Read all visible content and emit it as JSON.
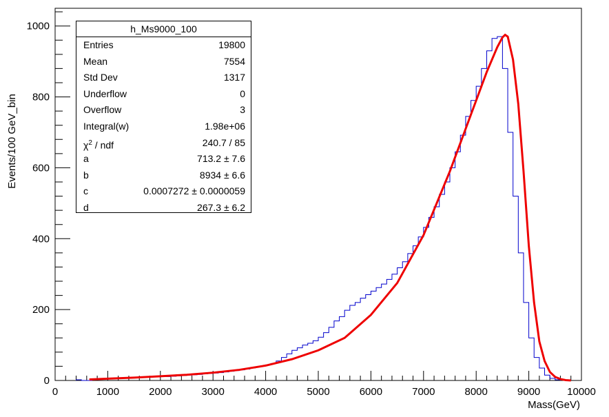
{
  "chart_data": {
    "type": "histogram",
    "ylabel": "Events/100 GeV_bin",
    "xlabel": "Mass(GeV)",
    "xlim": [
      0,
      10000
    ],
    "ylim": [
      0,
      1050
    ],
    "x_ticks": [
      "0",
      "1000",
      "2000",
      "3000",
      "4000",
      "5000",
      "6000",
      "7000",
      "8000",
      "9000",
      "10000"
    ],
    "y_ticks": [
      "0",
      "200",
      "400",
      "600",
      "800",
      "1000"
    ],
    "grid": false,
    "series": [
      {
        "kind": "histogram",
        "color": "#0000cc",
        "bin_width": 100,
        "bin_start": 400,
        "values": [
          2,
          0,
          0,
          3,
          3,
          4,
          5,
          6,
          6,
          7,
          7,
          8,
          8,
          9,
          10,
          10,
          11,
          11,
          12,
          13,
          14,
          15,
          16,
          17,
          19,
          20,
          21,
          22,
          24,
          26,
          28,
          30,
          32,
          35,
          38,
          41,
          44,
          48,
          55,
          65,
          75,
          85,
          92,
          100,
          105,
          112,
          122,
          135,
          150,
          168,
          180,
          198,
          212,
          220,
          232,
          242,
          252,
          262,
          272,
          285,
          300,
          318,
          335,
          358,
          380,
          405,
          432,
          460,
          490,
          525,
          560,
          600,
          645,
          692,
          745,
          790,
          830,
          880,
          930,
          965,
          970,
          880,
          700,
          520,
          360,
          220,
          120,
          65,
          35,
          15,
          6,
          2
        ],
        "stats": {
          "title": "h_Ms9000_100",
          "rows": [
            {
              "label": "Entries",
              "value": "19800"
            },
            {
              "label": "Mean",
              "value": "7554"
            },
            {
              "label": "Std Dev",
              "value": "1317"
            },
            {
              "label": "Underflow",
              "value": "0"
            },
            {
              "label": "Overflow",
              "value": "3"
            },
            {
              "label": "Integral(w)",
              "value": "1.98e+06"
            },
            {
              "label": "χ",
              "sup": "2",
              "suffix": " / ndf",
              "value": "240.7 / 85"
            },
            {
              "label": "a",
              "value": "713.2 ± 7.6"
            },
            {
              "label": "b",
              "value": "8934 ± 6.6"
            },
            {
              "label": "c",
              "value": "0.0007272 ± 0.0000059"
            },
            {
              "label": "d",
              "value": "267.3 ± 6.2"
            }
          ]
        }
      },
      {
        "kind": "fit",
        "color": "#ee0000",
        "x": [
          650,
          1000,
          1500,
          2000,
          2500,
          3000,
          3500,
          4000,
          4500,
          5000,
          5500,
          6000,
          6500,
          7000,
          7500,
          7800,
          8000,
          8200,
          8400,
          8500,
          8550,
          8600,
          8700,
          8800,
          8900,
          9000,
          9100,
          9200,
          9300,
          9400,
          9500,
          9600,
          9700,
          9800
        ],
        "y": [
          3,
          5,
          8,
          12,
          16,
          22,
          30,
          42,
          60,
          85,
          120,
          185,
          275,
          410,
          590,
          710,
          790,
          870,
          940,
          968,
          975,
          970,
          905,
          780,
          590,
          380,
          220,
          110,
          55,
          24,
          10,
          4,
          1,
          0
        ]
      }
    ]
  }
}
